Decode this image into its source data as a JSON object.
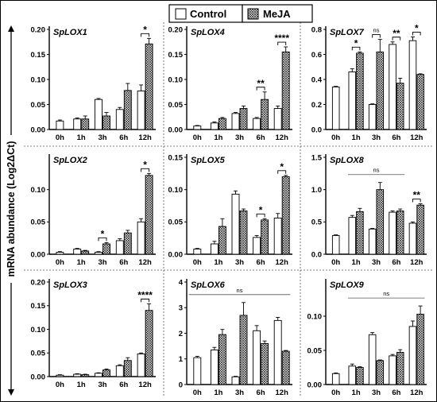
{
  "figure": {
    "y_axis_label": "mRNA abundance (Log2ΔCt)",
    "legend": [
      {
        "label": "Control",
        "pattern": "open"
      },
      {
        "label": "MeJA",
        "pattern": "crosshatch"
      }
    ]
  },
  "chart_data": [
    {
      "type": "bar",
      "title": "SpLOX1",
      "categories": [
        "0h",
        "1h",
        "3h",
        "6h",
        "12h"
      ],
      "ylim": [
        0,
        0.2
      ],
      "yticks": [
        "0.00",
        "0.05",
        "0.10",
        "0.15",
        "0.20"
      ],
      "yticks_val": [
        0,
        0.05,
        0.1,
        0.15,
        0.2
      ],
      "series": [
        {
          "name": "Control",
          "values": [
            0.017,
            0.021,
            0.06,
            0.04,
            0.077
          ],
          "errors": [
            0.002,
            0.002,
            0.002,
            0.004,
            0.012
          ]
        },
        {
          "name": "MeJA",
          "values": [
            null,
            0.021,
            0.027,
            0.078,
            0.171
          ],
          "errors": [
            null,
            0.006,
            0.007,
            0.014,
            0.011
          ]
        }
      ],
      "significance": [
        {
          "label": "*",
          "categories": [
            "12h"
          ]
        }
      ]
    },
    {
      "type": "bar",
      "title": "SpLOX4",
      "categories": [
        "0h",
        "1h",
        "3h",
        "6h",
        "12h"
      ],
      "ylim": [
        0,
        0.2
      ],
      "yticks": [
        "0.00",
        "0.05",
        "0.10",
        "0.15",
        "0.20"
      ],
      "yticks_val": [
        0,
        0.05,
        0.1,
        0.15,
        0.2
      ],
      "series": [
        {
          "name": "Control",
          "values": [
            0.007,
            0.013,
            0.032,
            0.022,
            0.042
          ],
          "errors": [
            0.001,
            0.002,
            0.002,
            0.002,
            0.005
          ]
        },
        {
          "name": "MeJA",
          "values": [
            null,
            0.022,
            0.042,
            0.06,
            0.155
          ],
          "errors": [
            null,
            0.002,
            0.005,
            0.015,
            0.01
          ]
        }
      ],
      "significance": [
        {
          "label": "**",
          "categories": [
            "6h"
          ]
        },
        {
          "label": "****",
          "categories": [
            "12h"
          ]
        }
      ]
    },
    {
      "type": "bar",
      "title": "SpLOX7",
      "categories": [
        "0h",
        "1h",
        "3h",
        "6h",
        "12h"
      ],
      "ylim": [
        0,
        0.8
      ],
      "yticks": [
        "0.0",
        "0.2",
        "0.4",
        "0.6",
        "0.8"
      ],
      "yticks_val": [
        0,
        0.2,
        0.4,
        0.6,
        0.8
      ],
      "series": [
        {
          "name": "Control",
          "values": [
            0.34,
            0.46,
            0.2,
            0.68,
            0.71
          ],
          "errors": [
            0.005,
            0.025,
            0.005,
            0.02,
            0.03
          ]
        },
        {
          "name": "MeJA",
          "values": [
            null,
            0.61,
            0.62,
            0.37,
            0.44
          ],
          "errors": [
            null,
            0.01,
            0.1,
            0.04,
            0.005
          ]
        }
      ],
      "significance": [
        {
          "label": "*",
          "categories": [
            "1h"
          ]
        },
        {
          "label": "ns",
          "categories": [
            "3h"
          ]
        },
        {
          "label": "**",
          "categories": [
            "6h"
          ]
        },
        {
          "label": "*",
          "categories": [
            "12h"
          ]
        }
      ]
    },
    {
      "type": "bar",
      "title": "SpLOX2",
      "categories": [
        "0h",
        "1h",
        "3h",
        "6h",
        "12h"
      ],
      "ylim": [
        0,
        0.15
      ],
      "yticks": [
        "0.00",
        "0.05",
        "0.10"
      ],
      "yticks_val": [
        0,
        0.05,
        0.1
      ],
      "series": [
        {
          "name": "Control",
          "values": [
            0.003,
            0.008,
            0.003,
            0.021,
            0.05
          ],
          "errors": [
            0.001,
            0.001,
            0.001,
            0.003,
            0.005
          ]
        },
        {
          "name": "MeJA",
          "values": [
            null,
            0.005,
            0.016,
            0.033,
            0.122
          ],
          "errors": [
            null,
            0.001,
            0.002,
            0.004,
            0.003
          ]
        }
      ],
      "significance": [
        {
          "label": "*",
          "categories": [
            "3h"
          ]
        },
        {
          "label": "*",
          "categories": [
            "12h"
          ]
        }
      ]
    },
    {
      "type": "bar",
      "title": "SpLOX5",
      "categories": [
        "0h",
        "1h",
        "3h",
        "6h",
        "12h"
      ],
      "ylim": [
        0,
        0.15
      ],
      "yticks": [
        "0.00",
        "0.05",
        "0.10",
        "0.15"
      ],
      "yticks_val": [
        0,
        0.05,
        0.1,
        0.15
      ],
      "series": [
        {
          "name": "Control",
          "values": [
            0.008,
            0.016,
            0.093,
            0.026,
            0.056
          ],
          "errors": [
            0.001,
            0.004,
            0.005,
            0.003,
            0.007
          ]
        },
        {
          "name": "MeJA",
          "values": [
            null,
            0.043,
            0.067,
            0.053,
            0.12
          ],
          "errors": [
            null,
            0.012,
            0.003,
            0.002,
            0.002
          ]
        }
      ],
      "significance": [
        {
          "label": "*",
          "categories": [
            "6h"
          ]
        },
        {
          "label": "*",
          "categories": [
            "12h"
          ]
        }
      ]
    },
    {
      "type": "bar",
      "title": "SpLOX8",
      "categories": [
        "0h",
        "1h",
        "3h",
        "6h",
        "12h"
      ],
      "ylim": [
        0,
        1.5
      ],
      "yticks": [
        "0.0",
        "0.5",
        "1.0",
        "1.5"
      ],
      "yticks_val": [
        0,
        0.5,
        1,
        1.5
      ],
      "series": [
        {
          "name": "Control",
          "values": [
            0.29,
            0.57,
            0.39,
            0.65,
            0.48
          ],
          "errors": [
            0.01,
            0.03,
            0.01,
            0.02,
            0.02
          ]
        },
        {
          "name": "MeJA",
          "values": [
            null,
            0.66,
            1.0,
            0.67,
            0.76
          ],
          "errors": [
            null,
            0.05,
            0.11,
            0.03,
            0.02
          ]
        }
      ],
      "significance": [
        {
          "label": "ns",
          "categories": [
            "1h",
            "3h",
            "6h"
          ]
        },
        {
          "label": "**",
          "categories": [
            "12h"
          ]
        }
      ]
    },
    {
      "type": "bar",
      "title": "SpLOX3",
      "categories": [
        "0h",
        "1h",
        "3h",
        "6h",
        "12h"
      ],
      "ylim": [
        0,
        0.2
      ],
      "yticks": [
        "0.00",
        "0.05",
        "0.10",
        "0.15",
        "0.20"
      ],
      "yticks_val": [
        0,
        0.05,
        0.1,
        0.15,
        0.2
      ],
      "series": [
        {
          "name": "Control",
          "values": [
            0.003,
            0.005,
            0.007,
            0.023,
            0.048
          ],
          "errors": [
            0.001,
            0.001,
            0.001,
            0.002,
            0.002
          ]
        },
        {
          "name": "MeJA",
          "values": [
            null,
            0.004,
            0.014,
            0.034,
            0.14
          ],
          "errors": [
            null,
            0.001,
            0.002,
            0.006,
            0.014
          ]
        }
      ],
      "significance": [
        {
          "label": "****",
          "categories": [
            "12h"
          ]
        }
      ]
    },
    {
      "type": "bar",
      "title": "SpLOX6",
      "categories": [
        "0h",
        "1h",
        "3h",
        "6h",
        "12h"
      ],
      "ylim": [
        0,
        4
      ],
      "yticks": [
        "0",
        "1",
        "2",
        "3",
        "4"
      ],
      "yticks_val": [
        0,
        1,
        2,
        3,
        4
      ],
      "series": [
        {
          "name": "Control",
          "values": [
            1.05,
            1.35,
            0.3,
            2.1,
            2.5
          ],
          "errors": [
            0.05,
            0.1,
            0.02,
            0.2,
            0.12
          ]
        },
        {
          "name": "MeJA",
          "values": [
            null,
            1.95,
            2.7,
            1.6,
            1.3
          ],
          "errors": [
            null,
            0.2,
            0.5,
            0.1,
            0.03
          ]
        }
      ],
      "significance": [
        {
          "label": "ns",
          "categories": [
            "0h",
            "1h",
            "3h",
            "6h",
            "12h"
          ]
        }
      ]
    },
    {
      "type": "bar",
      "title": "SpLOX9",
      "categories": [
        "0h",
        "1h",
        "3h",
        "6h",
        "12h"
      ],
      "ylim": [
        0,
        0.15
      ],
      "yticks": [
        "0.00",
        "0.05",
        "0.10"
      ],
      "yticks_val": [
        0,
        0.05,
        0.1
      ],
      "series": [
        {
          "name": "Control",
          "values": [
            0.016,
            0.027,
            0.073,
            0.042,
            0.085
          ],
          "errors": [
            0.001,
            0.003,
            0.003,
            0.002,
            0.008
          ]
        },
        {
          "name": "MeJA",
          "values": [
            null,
            0.025,
            0.035,
            0.047,
            0.103
          ],
          "errors": [
            null,
            0.001,
            0.001,
            0.004,
            0.012
          ]
        }
      ],
      "significance": [
        {
          "label": "ns",
          "categories": [
            "1h",
            "3h",
            "6h",
            "12h"
          ]
        }
      ]
    }
  ]
}
